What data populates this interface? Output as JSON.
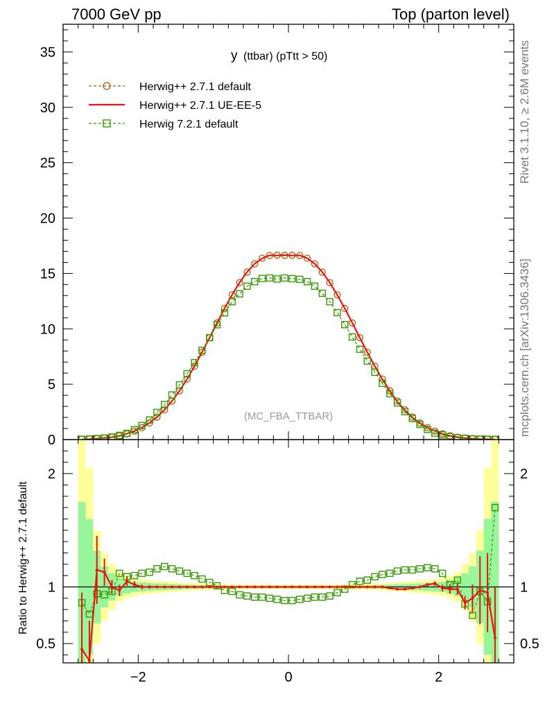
{
  "header": {
    "left": "7000 GeV pp",
    "right": "Top (parton level)"
  },
  "side_labels": {
    "rivet": "Rivet 3.1.10, ≥ 2.6M events",
    "mcplots": "mcplots.cern.ch [arXiv:1306.3436]"
  },
  "plot_title": {
    "main": "y",
    "sub": "(ttbar)  (pTtt > 50)"
  },
  "watermark": "(MC_FBA_TTBAR)",
  "ratio_ylabel": "Ratio to Herwig++ 2.7.1 default",
  "chart_data": [
    {
      "type": "line",
      "panel": "main",
      "xlim": [
        -3.0,
        3.0
      ],
      "ylim": [
        0,
        37.5
      ],
      "yticks": [
        0,
        5,
        10,
        15,
        20,
        25,
        30,
        35
      ],
      "ytick_labels": [
        "0",
        "5",
        "10",
        "15",
        "20",
        "25",
        "30",
        "35"
      ],
      "legend_position": "top-left",
      "x": [
        -2.75,
        -2.65,
        -2.55,
        -2.45,
        -2.35,
        -2.25,
        -2.15,
        -2.05,
        -1.95,
        -1.85,
        -1.75,
        -1.65,
        -1.55,
        -1.45,
        -1.35,
        -1.25,
        -1.15,
        -1.05,
        -0.95,
        -0.85,
        -0.75,
        -0.65,
        -0.55,
        -0.45,
        -0.35,
        -0.25,
        -0.15,
        -0.05,
        0.05,
        0.15,
        0.25,
        0.35,
        0.45,
        0.55,
        0.65,
        0.75,
        0.85,
        0.95,
        1.05,
        1.15,
        1.25,
        1.35,
        1.45,
        1.55,
        1.65,
        1.75,
        1.85,
        1.95,
        2.05,
        2.15,
        2.25,
        2.35,
        2.45,
        2.55,
        2.65,
        2.75
      ],
      "series": [
        {
          "name": "Herwig++ 2.7.1 default",
          "color": "#b35900",
          "dash": "dashed",
          "marker": "circle",
          "values": [
            0.03,
            0.05,
            0.09,
            0.14,
            0.22,
            0.34,
            0.52,
            0.76,
            1.08,
            1.5,
            2.03,
            2.69,
            3.48,
            4.41,
            5.46,
            6.63,
            7.89,
            9.2,
            10.53,
            11.84,
            13.07,
            14.17,
            15.12,
            15.87,
            16.38,
            16.62,
            16.65,
            16.64,
            16.64,
            16.62,
            16.38,
            15.87,
            15.12,
            14.17,
            13.07,
            11.84,
            10.53,
            9.2,
            7.89,
            6.63,
            5.46,
            4.41,
            3.48,
            2.69,
            2.03,
            1.5,
            1.08,
            0.76,
            0.52,
            0.34,
            0.22,
            0.14,
            0.09,
            0.05,
            0.03,
            0.02
          ]
        },
        {
          "name": "Herwig++ 2.7.1 UE-EE-5",
          "color": "#ee1111",
          "dash": "solid",
          "marker": "none",
          "values": [
            0.02,
            0.04,
            0.09,
            0.15,
            0.22,
            0.33,
            0.54,
            0.77,
            1.08,
            1.5,
            2.03,
            2.69,
            3.48,
            4.41,
            5.46,
            6.63,
            7.89,
            9.2,
            10.55,
            11.86,
            13.08,
            14.18,
            15.13,
            15.88,
            16.36,
            16.64,
            16.62,
            16.66,
            16.62,
            16.64,
            16.37,
            15.88,
            15.12,
            14.18,
            13.06,
            11.84,
            10.53,
            9.2,
            7.88,
            6.62,
            5.45,
            4.39,
            3.41,
            2.64,
            2.0,
            1.49,
            1.09,
            0.78,
            0.51,
            0.34,
            0.22,
            0.13,
            0.09,
            0.05,
            0.03,
            0.01
          ]
        },
        {
          "name": "Herwig 7.2.1 default",
          "color": "#339900",
          "dash": "dashed",
          "marker": "square",
          "values": [
            0.03,
            0.05,
            0.09,
            0.14,
            0.23,
            0.38,
            0.56,
            0.9,
            1.27,
            1.77,
            2.45,
            3.16,
            4.03,
            4.94,
            5.94,
            6.95,
            8.06,
            9.2,
            10.37,
            11.44,
            12.45,
            13.16,
            13.85,
            14.26,
            14.55,
            14.59,
            14.5,
            14.59,
            14.53,
            14.47,
            14.26,
            13.85,
            13.21,
            12.45,
            11.46,
            10.38,
            9.27,
            8.16,
            7.09,
            6.08,
            5.08,
            4.15,
            3.31,
            2.52,
            1.9,
            1.37,
            0.92,
            0.58,
            0.42,
            0.26,
            0.16,
            0.1,
            0.06,
            0.04,
            0.03,
            0.02
          ]
        }
      ]
    },
    {
      "type": "line",
      "panel": "ratio",
      "xlim": [
        -3.0,
        3.0
      ],
      "ylim": [
        0.33,
        2.3
      ],
      "yticks": [
        0.5,
        1,
        2
      ],
      "ytick_labels": [
        "0.5",
        "1",
        "2"
      ],
      "xticks": [
        -2,
        0,
        2
      ],
      "xtick_labels": [
        "−2",
        "0",
        "2"
      ],
      "reference_line": 1,
      "x": [
        -2.75,
        -2.65,
        -2.55,
        -2.45,
        -2.35,
        -2.25,
        -2.15,
        -2.05,
        -1.95,
        -1.85,
        -1.75,
        -1.65,
        -1.55,
        -1.45,
        -1.35,
        -1.25,
        -1.15,
        -1.05,
        -0.95,
        -0.85,
        -0.75,
        -0.65,
        -0.55,
        -0.45,
        -0.35,
        -0.25,
        -0.15,
        -0.05,
        0.05,
        0.15,
        0.25,
        0.35,
        0.45,
        0.55,
        0.65,
        0.75,
        0.85,
        0.95,
        1.05,
        1.15,
        1.25,
        1.35,
        1.45,
        1.55,
        1.65,
        1.75,
        1.85,
        1.95,
        2.05,
        2.15,
        2.25,
        2.35,
        2.45,
        2.55,
        2.65,
        2.75
      ],
      "uncertainty_band": {
        "inner_color": "#99f599",
        "outer_color": "#ffff99",
        "inner_halfwidth": [
          0.75,
          0.6,
          0.32,
          0.18,
          0.12,
          0.08,
          0.06,
          0.045,
          0.04,
          0.035,
          0.03,
          0.03,
          0.025,
          0.022,
          0.02,
          0.018,
          0.016,
          0.014,
          0.013,
          0.012,
          0.011,
          0.01,
          0.01,
          0.01,
          0.01,
          0.01,
          0.01,
          0.01,
          0.01,
          0.01,
          0.01,
          0.01,
          0.01,
          0.01,
          0.01,
          0.011,
          0.012,
          0.013,
          0.014,
          0.016,
          0.018,
          0.02,
          0.022,
          0.025,
          0.03,
          0.03,
          0.035,
          0.04,
          0.045,
          0.06,
          0.08,
          0.12,
          0.18,
          0.32,
          0.6,
          0.75
        ],
        "outer_halfwidth": [
          1.4,
          1.05,
          0.5,
          0.3,
          0.2,
          0.13,
          0.1,
          0.08,
          0.07,
          0.06,
          0.055,
          0.05,
          0.045,
          0.04,
          0.036,
          0.032,
          0.03,
          0.028,
          0.026,
          0.024,
          0.022,
          0.02,
          0.02,
          0.02,
          0.02,
          0.02,
          0.02,
          0.02,
          0.02,
          0.02,
          0.02,
          0.02,
          0.02,
          0.02,
          0.02,
          0.022,
          0.024,
          0.026,
          0.028,
          0.03,
          0.032,
          0.036,
          0.04,
          0.045,
          0.05,
          0.055,
          0.06,
          0.07,
          0.08,
          0.1,
          0.13,
          0.2,
          0.3,
          0.5,
          1.05,
          1.4
        ]
      },
      "series": [
        {
          "name": "Herwig++ 2.7.1 UE-EE-5",
          "color": "#ee1111",
          "dash": "solid",
          "marker": "errorbar",
          "values": [
            0.45,
            0.35,
            1.15,
            1.13,
            1.0,
            0.97,
            1.05,
            1.02,
            1.0,
            1.0,
            1.0,
            1.0,
            1.0,
            1.0,
            1.0,
            1.0,
            1.0,
            1.0,
            1.0,
            1.0,
            1.0,
            1.0,
            1.0,
            1.0,
            1.0,
            1.0,
            1.0,
            1.0,
            1.0,
            1.0,
            1.0,
            1.0,
            1.0,
            1.0,
            1.0,
            1.0,
            1.0,
            1.0,
            1.0,
            1.0,
            1.0,
            0.99,
            0.98,
            0.98,
            0.99,
            1.0,
            1.02,
            1.03,
            0.99,
            0.98,
            0.98,
            0.86,
            0.9,
            0.97,
            0.95,
            0.55
          ],
          "errors": [
            0.5,
            0.35,
            0.3,
            0.12,
            0.06,
            0.05,
            0.04,
            0.03,
            0.02,
            0.015,
            0.012,
            0.01,
            0.01,
            0.01,
            0.008,
            0.008,
            0.008,
            0.008,
            0.008,
            0.008,
            0.008,
            0.008,
            0.008,
            0.008,
            0.008,
            0.008,
            0.008,
            0.008,
            0.008,
            0.008,
            0.008,
            0.008,
            0.008,
            0.008,
            0.008,
            0.008,
            0.008,
            0.008,
            0.008,
            0.008,
            0.008,
            0.008,
            0.01,
            0.01,
            0.01,
            0.012,
            0.015,
            0.02,
            0.03,
            0.04,
            0.05,
            0.06,
            0.12,
            0.3,
            0.35,
            0.45
          ]
        },
        {
          "name": "Herwig 7.2.1 default",
          "color": "#339900",
          "dash": "dashed",
          "marker": "square",
          "values": [
            0.86,
            0.76,
            0.94,
            0.93,
            0.96,
            1.12,
            1.09,
            1.1,
            1.12,
            1.13,
            1.16,
            1.18,
            1.16,
            1.14,
            1.12,
            1.1,
            1.07,
            1.04,
            1.01,
            0.97,
            0.96,
            0.93,
            0.92,
            0.91,
            0.91,
            0.9,
            0.89,
            0.88,
            0.88,
            0.89,
            0.9,
            0.91,
            0.91,
            0.92,
            0.95,
            0.98,
            1.02,
            1.05,
            1.06,
            1.09,
            1.11,
            1.12,
            1.14,
            1.15,
            1.15,
            1.16,
            1.17,
            1.16,
            1.12,
            1.02,
            1.06,
            0.85,
            0.75,
            0.96,
            0.87,
            1.7
          ]
        }
      ]
    }
  ]
}
